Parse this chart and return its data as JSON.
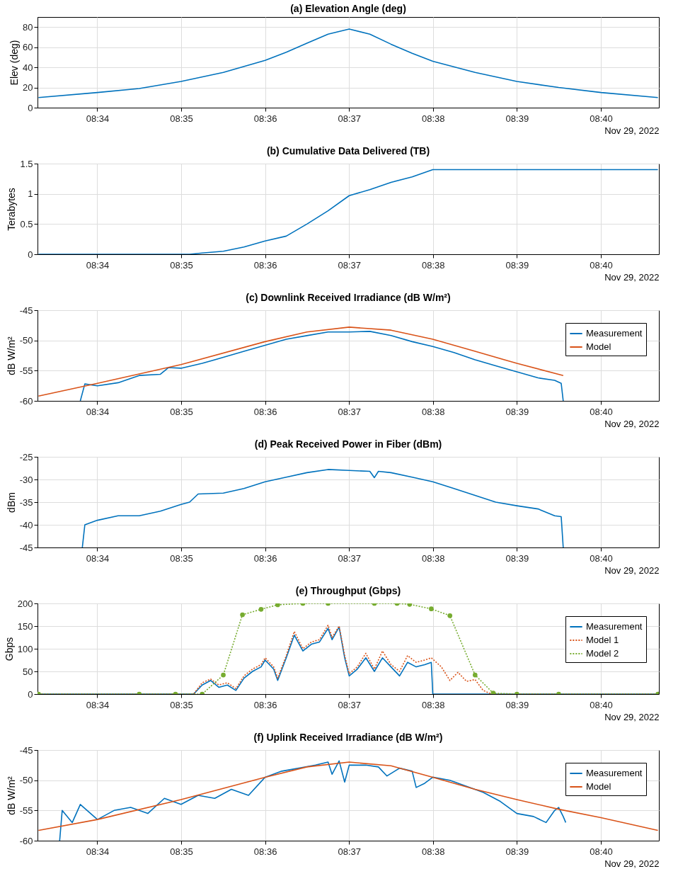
{
  "chart_data": [
    {
      "type": "line",
      "title": "(a) Elevation Angle (deg)",
      "xlabel": "Nov 29, 2022",
      "ylabel": "Elev (deg)",
      "xlim": [
        8.5548,
        8.6782
      ],
      "xticks": [
        {
          "value": 8.566667,
          "label": "08:34"
        },
        {
          "value": 8.583333,
          "label": "08:35"
        },
        {
          "value": 8.6,
          "label": "08:36"
        },
        {
          "value": 8.616667,
          "label": "08:37"
        },
        {
          "value": 8.633333,
          "label": "08:38"
        },
        {
          "value": 8.65,
          "label": "08:39"
        },
        {
          "value": 8.666667,
          "label": "08:40"
        }
      ],
      "ylim": [
        0,
        90
      ],
      "yticks": [
        0,
        20,
        40,
        60,
        80
      ],
      "grid": true,
      "series": [
        {
          "color": "#0072bd",
          "x": [
            8.555,
            8.5667,
            8.575,
            8.5833,
            8.5917,
            8.6,
            8.6042,
            8.6083,
            8.6125,
            8.6167,
            8.6208,
            8.625,
            8.6292,
            8.6333,
            8.6417,
            8.65,
            8.6583,
            8.6667,
            8.678
          ],
          "values": [
            10,
            15,
            19,
            26,
            35,
            47,
            55,
            64,
            73,
            78,
            73,
            63,
            54,
            46,
            35,
            26,
            20,
            15,
            10
          ]
        }
      ]
    },
    {
      "type": "line",
      "title": "(b) Cumulative Data Delivered (TB)",
      "xlabel": "Nov 29, 2022",
      "ylabel": "Terabytes",
      "xlim": [
        8.5548,
        8.6782
      ],
      "xticks": [
        {
          "value": 8.566667,
          "label": "08:34"
        },
        {
          "value": 8.583333,
          "label": "08:35"
        },
        {
          "value": 8.6,
          "label": "08:36"
        },
        {
          "value": 8.616667,
          "label": "08:37"
        },
        {
          "value": 8.633333,
          "label": "08:38"
        },
        {
          "value": 8.65,
          "label": "08:39"
        },
        {
          "value": 8.666667,
          "label": "08:40"
        }
      ],
      "ylim": [
        0,
        1.5
      ],
      "yticks": [
        0,
        0.5,
        1,
        1.5
      ],
      "grid": true,
      "series": [
        {
          "color": "#0072bd",
          "x": [
            8.555,
            8.585,
            8.5875,
            8.5917,
            8.5958,
            8.6,
            8.6042,
            8.6083,
            8.6125,
            8.6167,
            8.6208,
            8.625,
            8.6292,
            8.6333,
            8.678
          ],
          "values": [
            0,
            0,
            0.02,
            0.05,
            0.12,
            0.22,
            0.3,
            0.5,
            0.72,
            0.97,
            1.07,
            1.19,
            1.28,
            1.4,
            1.4
          ]
        }
      ]
    },
    {
      "type": "line",
      "title": "(c) Downlink Received Irradiance (dB W/m²)",
      "xlabel": "Nov 29, 2022",
      "ylabel": "dB W/m²",
      "xlim": [
        8.5548,
        8.6782
      ],
      "xticks": [
        {
          "value": 8.566667,
          "label": "08:34"
        },
        {
          "value": 8.583333,
          "label": "08:35"
        },
        {
          "value": 8.6,
          "label": "08:36"
        },
        {
          "value": 8.616667,
          "label": "08:37"
        },
        {
          "value": 8.633333,
          "label": "08:38"
        },
        {
          "value": 8.65,
          "label": "08:39"
        },
        {
          "value": 8.666667,
          "label": "08:40"
        }
      ],
      "ylim": [
        -60,
        -45
      ],
      "yticks": [
        -60,
        -55,
        -50,
        -45
      ],
      "grid": true,
      "legend": "top right",
      "series": [
        {
          "name": "Measurement",
          "color": "#0072bd",
          "x": [
            8.5633,
            8.5642,
            8.5667,
            8.5708,
            8.575,
            8.5792,
            8.5808,
            8.5833,
            8.5875,
            8.5917,
            8.5958,
            8.6,
            8.6042,
            8.6083,
            8.6125,
            8.6167,
            8.6208,
            8.625,
            8.6292,
            8.6333,
            8.6375,
            8.6417,
            8.6458,
            8.65,
            8.6542,
            8.6575,
            8.6588,
            8.6592
          ],
          "values": [
            -60,
            -57.2,
            -57.5,
            -57,
            -55.8,
            -55.6,
            -54.5,
            -54.6,
            -53.8,
            -52.8,
            -51.8,
            -50.8,
            -49.8,
            -49.2,
            -48.6,
            -48.6,
            -48.5,
            -49.2,
            -50.2,
            -51,
            -52,
            -53.2,
            -54.2,
            -55.2,
            -56.2,
            -56.6,
            -57.1,
            -60
          ]
        },
        {
          "name": "Model",
          "color": "#d95319",
          "x": [
            8.555,
            8.5667,
            8.5833,
            8.6,
            8.6083,
            8.6167,
            8.625,
            8.6333,
            8.6417,
            8.65,
            8.6592
          ],
          "values": [
            -59.2,
            -57.1,
            -54,
            -50.2,
            -48.6,
            -47.8,
            -48.3,
            -49.8,
            -51.8,
            -53.8,
            -55.8
          ]
        }
      ]
    },
    {
      "type": "line",
      "title": "(d) Peak Received Power in Fiber (dBm)",
      "xlabel": "Nov 29, 2022",
      "ylabel": "dBm",
      "xlim": [
        8.5548,
        8.6782
      ],
      "xticks": [
        {
          "value": 8.566667,
          "label": "08:34"
        },
        {
          "value": 8.583333,
          "label": "08:35"
        },
        {
          "value": 8.6,
          "label": "08:36"
        },
        {
          "value": 8.616667,
          "label": "08:37"
        },
        {
          "value": 8.633333,
          "label": "08:38"
        },
        {
          "value": 8.65,
          "label": "08:39"
        },
        {
          "value": 8.666667,
          "label": "08:40"
        }
      ],
      "ylim": [
        -45,
        -25
      ],
      "yticks": [
        -45,
        -40,
        -35,
        -30,
        -25
      ],
      "grid": true,
      "series": [
        {
          "color": "#0072bd",
          "x": [
            8.5637,
            8.5642,
            8.5667,
            8.5708,
            8.575,
            8.5792,
            8.5833,
            8.585,
            8.5867,
            8.5917,
            8.5958,
            8.6,
            8.6042,
            8.6083,
            8.6125,
            8.6167,
            8.6208,
            8.6217,
            8.6225,
            8.625,
            8.6292,
            8.6333,
            8.6375,
            8.6417,
            8.6458,
            8.65,
            8.6542,
            8.6575,
            8.6588,
            8.6592
          ],
          "values": [
            -45,
            -40,
            -39,
            -38,
            -38,
            -37,
            -35.5,
            -35,
            -33.2,
            -33,
            -32,
            -30.5,
            -29.5,
            -28.5,
            -27.8,
            -28,
            -28.2,
            -29.6,
            -28.2,
            -28.5,
            -29.5,
            -30.5,
            -32,
            -33.5,
            -35,
            -35.8,
            -36.5,
            -38,
            -38.2,
            -45
          ]
        }
      ]
    },
    {
      "type": "line",
      "title": "(e) Throughput (Gbps)",
      "xlabel": "Nov 29, 2022",
      "ylabel": "Gbps",
      "xlim": [
        8.5548,
        8.6782
      ],
      "xticks": [
        {
          "value": 8.566667,
          "label": "08:34"
        },
        {
          "value": 8.583333,
          "label": "08:35"
        },
        {
          "value": 8.6,
          "label": "08:36"
        },
        {
          "value": 8.616667,
          "label": "08:37"
        },
        {
          "value": 8.633333,
          "label": "08:38"
        },
        {
          "value": 8.65,
          "label": "08:39"
        },
        {
          "value": 8.666667,
          "label": "08:40"
        }
      ],
      "ylim": [
        0,
        200
      ],
      "yticks": [
        0,
        50,
        100,
        150,
        200
      ],
      "grid": true,
      "legend": "top right",
      "series": [
        {
          "name": "Measurement",
          "color": "#0072bd",
          "line_style": "solid",
          "x": [
            8.555,
            8.5858,
            8.5875,
            8.5892,
            8.5908,
            8.5925,
            8.5942,
            8.5958,
            8.5975,
            8.5992,
            8.6,
            8.6017,
            8.6025,
            8.6042,
            8.6058,
            8.6075,
            8.6092,
            8.6108,
            8.6125,
            8.6133,
            8.6147,
            8.6158,
            8.6167,
            8.6183,
            8.62,
            8.6217,
            8.6233,
            8.625,
            8.6267,
            8.6283,
            8.63,
            8.6317,
            8.633,
            8.6333,
            8.678
          ],
          "values": [
            0,
            0,
            20,
            30,
            15,
            20,
            8,
            35,
            50,
            60,
            75,
            55,
            30,
            80,
            130,
            95,
            110,
            115,
            145,
            120,
            148,
            80,
            40,
            55,
            80,
            50,
            80,
            60,
            40,
            70,
            60,
            65,
            70,
            0,
            0
          ]
        },
        {
          "name": "Model 1",
          "color": "#d95319",
          "line_style": "dotted",
          "x": [
            8.555,
            8.5858,
            8.5875,
            8.5892,
            8.5908,
            8.5925,
            8.5942,
            8.5958,
            8.5975,
            8.5992,
            8.6,
            8.6017,
            8.6025,
            8.6042,
            8.6058,
            8.6075,
            8.6092,
            8.6108,
            8.6125,
            8.6133,
            8.6147,
            8.6158,
            8.6167,
            8.6183,
            8.62,
            8.6217,
            8.6233,
            8.625,
            8.6267,
            8.6283,
            8.63,
            8.6317,
            8.633,
            8.635,
            8.6367,
            8.6383,
            8.64,
            8.6417,
            8.6433,
            8.645,
            8.678
          ],
          "values": [
            0,
            0,
            25,
            33,
            20,
            25,
            12,
            40,
            55,
            65,
            80,
            60,
            35,
            85,
            138,
            100,
            115,
            120,
            152,
            125,
            150,
            85,
            45,
            60,
            90,
            55,
            95,
            65,
            50,
            85,
            70,
            75,
            80,
            60,
            30,
            48,
            28,
            32,
            8,
            0,
            0
          ]
        },
        {
          "name": "Model 2",
          "color": "#77ac30",
          "line_style": "dotted",
          "marker": "circle",
          "x": [
            8.555,
            8.575,
            8.5822,
            8.5875,
            8.5917,
            8.5955,
            8.5992,
            8.6025,
            8.6075,
            8.6125,
            8.6217,
            8.6262,
            8.6287,
            8.633,
            8.6367,
            8.6417,
            8.6453,
            8.65,
            8.6583,
            8.678
          ],
          "values": [
            0,
            0,
            0,
            0,
            42,
            175,
            187,
            197,
            200,
            200,
            200,
            200,
            198,
            188,
            173,
            42,
            2,
            0,
            0,
            0
          ]
        }
      ]
    },
    {
      "type": "line",
      "title": "(f) Uplink Received Irradiance (dB W/m²)",
      "xlabel": "Nov 29, 2022",
      "ylabel": "dB W/m²",
      "xlim": [
        8.5548,
        8.6782
      ],
      "xticks": [
        {
          "value": 8.566667,
          "label": "08:34"
        },
        {
          "value": 8.583333,
          "label": "08:35"
        },
        {
          "value": 8.6,
          "label": "08:36"
        },
        {
          "value": 8.616667,
          "label": "08:37"
        },
        {
          "value": 8.633333,
          "label": "08:38"
        },
        {
          "value": 8.65,
          "label": "08:39"
        },
        {
          "value": 8.666667,
          "label": "08:40"
        }
      ],
      "ylim": [
        -60,
        -45
      ],
      "yticks": [
        -60,
        -55,
        -50,
        -45
      ],
      "grid": true,
      "legend": "top right",
      "series": [
        {
          "name": "Measurement",
          "color": "#0072bd",
          "x": [
            8.5592,
            8.5597,
            8.5617,
            8.5633,
            8.5667,
            8.57,
            8.5733,
            8.5767,
            8.58,
            8.5833,
            8.5867,
            8.59,
            8.5933,
            8.5967,
            8.6,
            8.6033,
            8.6067,
            8.61,
            8.6125,
            8.6133,
            8.6147,
            8.6158,
            8.6167,
            8.62,
            8.6225,
            8.6242,
            8.6267,
            8.6292,
            8.63,
            8.6317,
            8.6333,
            8.6367,
            8.64,
            8.6433,
            8.6467,
            8.65,
            8.6533,
            8.6558,
            8.6575,
            8.6583,
            8.6592,
            8.6597
          ],
          "values": [
            -60,
            -55,
            -57,
            -54,
            -56.5,
            -55,
            -54.5,
            -55.5,
            -53,
            -54,
            -52.5,
            -53,
            -51.5,
            -52.5,
            -49.5,
            -48.5,
            -48,
            -47.5,
            -47,
            -49,
            -46.8,
            -50.3,
            -47.5,
            -47.5,
            -47.8,
            -49.3,
            -48,
            -48.5,
            -51.2,
            -50.5,
            -49.5,
            -50,
            -51,
            -52,
            -53.5,
            -55.5,
            -56,
            -57,
            -55,
            -54.5,
            -56,
            -57
          ]
        },
        {
          "name": "Model",
          "color": "#d95319",
          "x": [
            8.555,
            8.5667,
            8.5833,
            8.6,
            8.6083,
            8.6167,
            8.625,
            8.6333,
            8.6417,
            8.65,
            8.6583,
            8.6667,
            8.678
          ],
          "values": [
            -58.3,
            -56.5,
            -53.2,
            -49.5,
            -47.8,
            -47,
            -47.6,
            -49.5,
            -51.5,
            -53.2,
            -54.8,
            -56.2,
            -58.3
          ]
        }
      ]
    }
  ]
}
